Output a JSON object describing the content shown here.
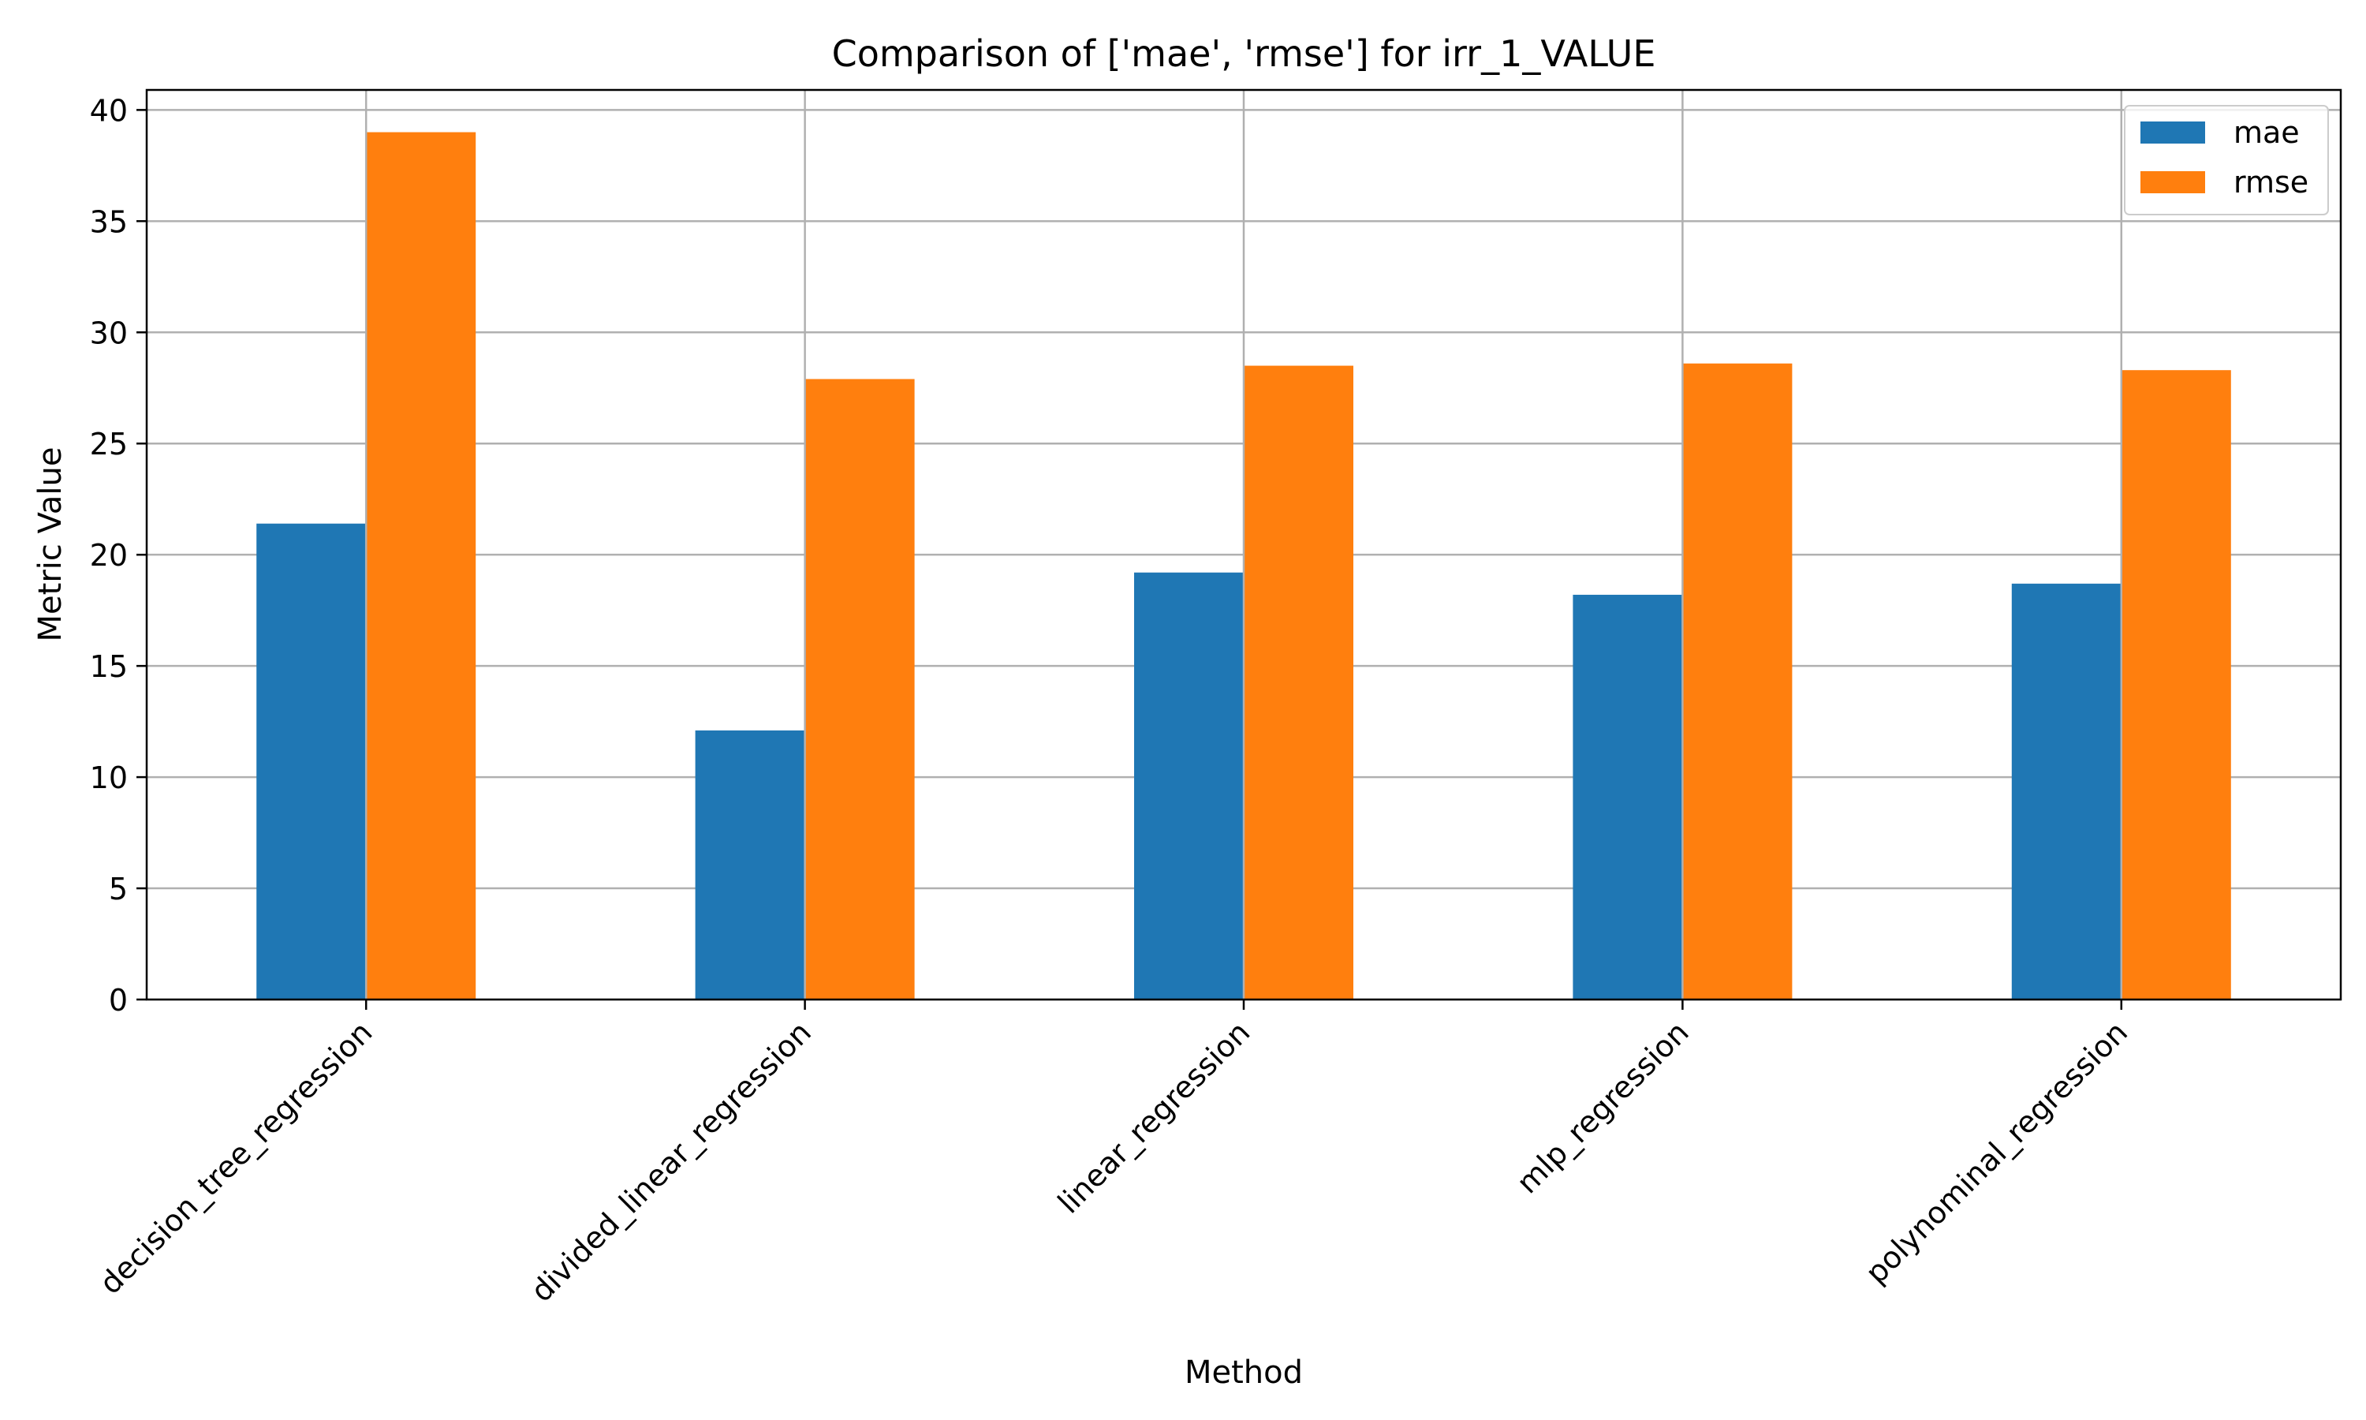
{
  "chart_data": {
    "type": "bar",
    "title": "Comparison of ['mae', 'rmse'] for irr_1_VALUE",
    "xlabel": "Method",
    "ylabel": "Metric Value",
    "categories": [
      "decision_tree_regression",
      "divided_linear_regression",
      "linear_regression",
      "mlp_regression",
      "polynominal_regression"
    ],
    "series": [
      {
        "name": "mae",
        "color": "#1f77b4",
        "values": [
          21.4,
          12.1,
          19.2,
          18.2,
          18.7
        ]
      },
      {
        "name": "rmse",
        "color": "#ff7f0e",
        "values": [
          39.0,
          27.9,
          28.5,
          28.6,
          28.3
        ]
      }
    ],
    "ylim": [
      0,
      40.9
    ],
    "yticks": [
      0,
      5,
      10,
      15,
      20,
      25,
      30,
      35,
      40
    ],
    "xtick_rotation": 45,
    "grid": true,
    "legend_position": "top-right"
  }
}
